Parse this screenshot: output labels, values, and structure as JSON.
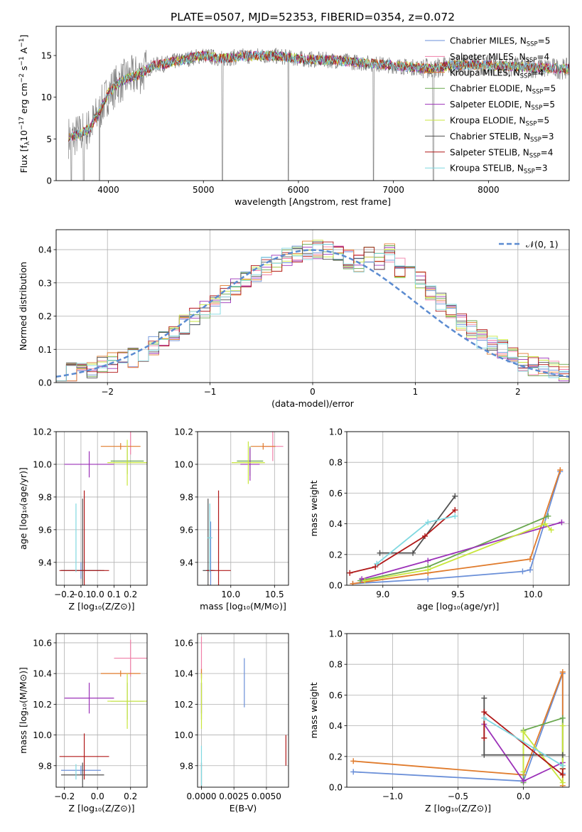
{
  "figure_title": "PLATE=0507, MJD=52353, FIBERID=0354, z=0.072",
  "chart_data": [
    {
      "id": "spectrum",
      "type": "line",
      "title": "PLATE=0507, MJD=52353, FIBERID=0354, z=0.072",
      "xlabel": "wavelength [Angstrom, rest frame]",
      "ylabel": "Flux [f_λ 10^-17 erg cm^-2 s^-1 A^-1]",
      "xlim": [
        3450,
        8850
      ],
      "ylim": [
        0,
        18.5
      ],
      "xticks": [
        4000,
        5000,
        6000,
        7000,
        8000
      ],
      "yticks": [
        0,
        5,
        10,
        15
      ],
      "grid": false,
      "legend": "upper right",
      "data_color": "#808080",
      "continuum": {
        "x": [
          3600,
          3700,
          3800,
          3900,
          4000,
          4100,
          4200,
          4300,
          4400,
          4500,
          4600,
          4700,
          4800,
          4900,
          5000,
          5200,
          5400,
          5600,
          5800,
          6000,
          6200,
          6400,
          6600,
          6800,
          7000,
          7200,
          7400,
          7600,
          7800,
          8000,
          8200,
          8400,
          8600,
          8800
        ],
        "y": [
          5.2,
          5.6,
          6.2,
          8.2,
          10.5,
          11.6,
          12.3,
          12.6,
          13.3,
          13.9,
          14.0,
          14.3,
          14.5,
          14.8,
          15.0,
          14.6,
          14.9,
          15.0,
          14.9,
          14.6,
          14.5,
          14.4,
          14.2,
          14.0,
          13.8,
          13.6,
          13.4,
          13.8,
          13.9,
          13.8,
          13.7,
          13.6,
          13.5,
          13.4
        ]
      },
      "absorption_features": [
        3610,
        3740,
        3905,
        5200,
        5895,
        6790,
        7420
      ],
      "series": [
        {
          "name": "Chabrier MILES, N_SSP=5",
          "label_main": "Chabrier MILES, N",
          "label_sub": "SSP",
          "label_end": "=5",
          "color": "#6a8fd8"
        },
        {
          "name": "Salpeter MILES, N_SSP=4",
          "label_main": "Salpeter MILES, N",
          "label_sub": "SSP",
          "label_end": "=4",
          "color": "#f07fa8"
        },
        {
          "name": "Kroupa MILES, N_SSP=4",
          "label_main": "Kroupa MILES, N",
          "label_sub": "SSP",
          "label_end": "=4",
          "color": "#e07b2c"
        },
        {
          "name": "Chabrier ELODIE, N_SSP=5",
          "label_main": "Chabrier ELODIE, N",
          "label_sub": "SSP",
          "label_end": "=5",
          "color": "#6aa84f"
        },
        {
          "name": "Salpeter ELODIE, N_SSP=5",
          "label_main": "Salpeter ELODIE, N",
          "label_sub": "SSP",
          "label_end": "=5",
          "color": "#9b30b8"
        },
        {
          "name": "Kroupa ELODIE, N_SSP=5",
          "label_main": "Kroupa ELODIE, N",
          "label_sub": "SSP",
          "label_end": "=5",
          "color": "#c8e63c"
        },
        {
          "name": "Chabrier STELIB, N_SSP=3",
          "label_main": "Chabrier STELIB, N",
          "label_sub": "SSP",
          "label_end": "=3",
          "color": "#505050"
        },
        {
          "name": "Salpeter STELIB, N_SSP=4",
          "label_main": "Salpeter STELIB, N",
          "label_sub": "SSP",
          "label_end": "=4",
          "color": "#b01818"
        },
        {
          "name": "Kroupa STELIB, N_SSP=3",
          "label_main": "Kroupa STELIB, N",
          "label_sub": "SSP",
          "label_end": "=3",
          "color": "#7fd8e0"
        }
      ]
    },
    {
      "id": "residuals",
      "type": "histogram",
      "xlabel": "(data-model)/error",
      "ylabel": "Normed distribution",
      "xlim": [
        -2.5,
        2.5
      ],
      "ylim": [
        0,
        0.46
      ],
      "xticks": [
        -2,
        -1,
        0,
        1,
        2
      ],
      "xtick_labels": [
        "−2",
        "−1",
        "0",
        "1",
        "2"
      ],
      "yticks": [
        0.0,
        0.1,
        0.2,
        0.3,
        0.4
      ],
      "ytick_labels": [
        "0.0",
        "0.1",
        "0.2",
        "0.3",
        "0.4"
      ],
      "grid": true,
      "legend": "upper right",
      "bin_width": 0.1,
      "bin_start": -2.5,
      "normal_curve": {
        "label": "𝒩(0, 1)",
        "color": "#5b8bd0",
        "style": "dashed"
      },
      "bin_values": [
        0.02,
        0.03,
        0.04,
        0.04,
        0.05,
        0.06,
        0.065,
        0.075,
        0.09,
        0.11,
        0.13,
        0.15,
        0.175,
        0.2,
        0.215,
        0.235,
        0.265,
        0.29,
        0.31,
        0.33,
        0.35,
        0.36,
        0.375,
        0.39,
        0.4,
        0.4,
        0.395,
        0.385,
        0.37,
        0.36,
        0.38,
        0.37,
        0.39,
        0.345,
        0.325,
        0.305,
        0.27,
        0.24,
        0.21,
        0.185,
        0.16,
        0.13,
        0.115,
        0.1,
        0.08,
        0.06,
        0.05,
        0.045,
        0.04,
        0.03
      ],
      "series_colors": [
        "#6a8fd8",
        "#f07fa8",
        "#e07b2c",
        "#6aa84f",
        "#9b30b8",
        "#c8e63c",
        "#505050",
        "#b01818",
        "#7fd8e0"
      ]
    },
    {
      "id": "age-vs-Z",
      "type": "errorbar",
      "xlabel": "Z [log₁₀(Z/Z⊙)]",
      "ylabel": "age  [log₁₀(age/yr)]",
      "xlim": [
        -0.25,
        0.3
      ],
      "ylim": [
        9.26,
        10.2
      ],
      "xticks": [
        -0.2,
        -0.1,
        0.0,
        0.1,
        0.2
      ],
      "xtick_labels": [
        "−0.2",
        "−0.1",
        "0.0",
        "0.1",
        "0.2"
      ],
      "yticks": [
        9.4,
        9.6,
        9.8,
        10.0,
        10.2
      ],
      "ytick_labels": [
        "9.4",
        "9.6",
        "9.8",
        "10.0",
        "10.2"
      ],
      "grid": true,
      "points": [
        {
          "series": 0,
          "x": -0.1,
          "xerr": 0.12,
          "y": 9.35,
          "yerr": 0.05
        },
        {
          "series": 1,
          "x": 0.2,
          "xerr": 0.0,
          "y": 10.13,
          "yerr": 0.07
        },
        {
          "series": 2,
          "x": 0.14,
          "xerr": 0.12,
          "y": 10.11,
          "yerr": 0.02
        },
        {
          "series": 3,
          "x": 0.18,
          "xerr": 0.1,
          "y": 10.02,
          "yerr": 0.08
        },
        {
          "series": 4,
          "x": -0.05,
          "xerr": 0.15,
          "y": 10.0,
          "yerr": 0.08
        },
        {
          "series": 5,
          "x": 0.18,
          "xerr": 0.12,
          "y": 10.01,
          "yerr": 0.14
        },
        {
          "series": 6,
          "x": -0.09,
          "xerr": 0.13,
          "y": 9.35,
          "yerr": 0.44
        },
        {
          "series": 7,
          "x": -0.08,
          "xerr": 0.15,
          "y": 9.35,
          "yerr": 0.49
        },
        {
          "series": 8,
          "x": -0.13,
          "xerr": 0.0,
          "y": 9.55,
          "yerr": 0.21
        }
      ]
    },
    {
      "id": "age-vs-mass",
      "type": "errorbar",
      "xlabel": "mass [log₁₀(M/M⊙)]",
      "ylabel": "",
      "xlim": [
        9.62,
        10.66
      ],
      "ylim": [
        9.26,
        10.2
      ],
      "xticks": [
        10.0,
        10.5
      ],
      "xtick_labels": [
        "10.0",
        "10.5"
      ],
      "yticks": [
        9.4,
        9.6,
        9.8,
        10.0,
        10.2
      ],
      "ytick_labels": [
        "9.4",
        "9.6",
        "9.8",
        "10.0",
        "10.2"
      ],
      "grid": true,
      "points": [
        {
          "series": 0,
          "x": 9.77,
          "xerr": 0.05,
          "y": 9.35,
          "yerr": 0.3
        },
        {
          "series": 1,
          "x": 10.48,
          "xerr": 0.12,
          "y": 10.11,
          "yerr": 0.09
        },
        {
          "series": 2,
          "x": 10.37,
          "xerr": 0.14,
          "y": 10.11,
          "yerr": 0.02
        },
        {
          "series": 3,
          "x": 10.22,
          "xerr": 0.15,
          "y": 10.02,
          "yerr": 0.09
        },
        {
          "series": 4,
          "x": 10.22,
          "xerr": 0.11,
          "y": 10.0,
          "yerr": 0.1
        },
        {
          "series": 5,
          "x": 10.2,
          "xerr": 0.19,
          "y": 10.01,
          "yerr": 0.13
        },
        {
          "series": 6,
          "x": 9.74,
          "xerr": 0.06,
          "y": 9.35,
          "yerr": 0.44
        },
        {
          "series": 7,
          "x": 9.86,
          "xerr": 0.14,
          "y": 9.35,
          "yerr": 0.49
        },
        {
          "series": 8,
          "x": 9.76,
          "xerr": 0.03,
          "y": 9.55,
          "yerr": 0.21
        }
      ]
    },
    {
      "id": "weight-vs-age",
      "type": "line",
      "xlabel": "age  [log₁₀(age/yr)]",
      "ylabel": "mass weight",
      "xlim": [
        8.76,
        10.24
      ],
      "ylim": [
        0,
        1.0
      ],
      "xticks": [
        9.0,
        9.5,
        10.0
      ],
      "xtick_labels": [
        "9.0",
        "9.5",
        "10.0"
      ],
      "yticks": [
        0.0,
        0.2,
        0.4,
        0.6,
        0.8,
        1.0
      ],
      "ytick_labels": [
        "0.0",
        "0.2",
        "0.4",
        "0.6",
        "0.8",
        "1.0"
      ],
      "grid": true,
      "lines": [
        {
          "series": 0,
          "x": [
            8.8,
            9.3,
            9.93,
            9.98,
            10.18
          ],
          "y": [
            0.01,
            0.04,
            0.09,
            0.1,
            0.74
          ]
        },
        {
          "series": 2,
          "x": [
            8.8,
            9.3,
            9.98,
            10.18
          ],
          "y": [
            0.01,
            0.08,
            0.17,
            0.75
          ]
        },
        {
          "series": 3,
          "x": [
            8.85,
            9.3,
            10.1
          ],
          "y": [
            0.03,
            0.12,
            0.45
          ]
        },
        {
          "series": 4,
          "x": [
            8.86,
            9.3,
            10.19
          ],
          "y": [
            0.04,
            0.16,
            0.41
          ]
        },
        {
          "series": 5,
          "x": [
            8.88,
            9.3,
            10.08,
            10.12
          ],
          "y": [
            0.03,
            0.1,
            0.4,
            0.36
          ]
        },
        {
          "series": 6,
          "x": [
            8.98,
            9.2,
            9.48
          ],
          "y": [
            0.21,
            0.21,
            0.58
          ]
        },
        {
          "series": 7,
          "x": [
            8.78,
            8.95,
            9.28,
            9.48
          ],
          "y": [
            0.08,
            0.12,
            0.32,
            0.49
          ]
        },
        {
          "series": 8,
          "x": [
            8.96,
            9.3,
            9.48
          ],
          "y": [
            0.14,
            0.41,
            0.45
          ]
        }
      ]
    },
    {
      "id": "mass-vs-Z",
      "type": "errorbar",
      "xlabel": "Z [log₁₀(Z/Z⊙)]",
      "ylabel": "mass [log₁₀(M/M⊙)]",
      "xlim": [
        -0.25,
        0.3
      ],
      "ylim": [
        9.66,
        10.66
      ],
      "xticks": [
        -0.2,
        0.0,
        0.2
      ],
      "xtick_labels": [
        "−0.2",
        "0.0",
        "0.2"
      ],
      "yticks": [
        9.8,
        10.0,
        10.2,
        10.4,
        10.6
      ],
      "ytick_labels": [
        "9.8",
        "10.0",
        "10.2",
        "10.4",
        "10.6"
      ],
      "grid": true,
      "points": [
        {
          "series": 0,
          "x": -0.1,
          "xerr": 0.12,
          "y": 9.77,
          "yerr": 0.03
        },
        {
          "series": 1,
          "x": 0.2,
          "xerr": 0.1,
          "y": 10.5,
          "yerr": 0.12
        },
        {
          "series": 2,
          "x": 0.14,
          "xerr": 0.12,
          "y": 10.4,
          "yerr": 0.02
        },
        {
          "series": 3,
          "x": 0.18,
          "xerr": 0.1,
          "y": 10.22,
          "yerr": 0.12
        },
        {
          "series": 4,
          "x": -0.05,
          "xerr": 0.15,
          "y": 10.24,
          "yerr": 0.1
        },
        {
          "series": 5,
          "x": 0.18,
          "xerr": 0.12,
          "y": 10.22,
          "yerr": 0.18
        },
        {
          "series": 6,
          "x": -0.09,
          "xerr": 0.13,
          "y": 9.74,
          "yerr": 0.08
        },
        {
          "series": 7,
          "x": -0.08,
          "xerr": 0.15,
          "y": 9.86,
          "yerr": 0.15
        },
        {
          "series": 8,
          "x": -0.13,
          "xerr": 0.0,
          "y": 9.76,
          "yerr": 0.05
        }
      ]
    },
    {
      "id": "mass-vs-ebv",
      "type": "errorbar",
      "xlabel": "E(B-V)",
      "ylabel": "",
      "xlim": [
        -0.0003,
        0.0067
      ],
      "ylim": [
        9.66,
        10.66
      ],
      "xticks": [
        0.0,
        0.0025,
        0.005
      ],
      "xtick_labels": [
        "0.0000",
        "0.0025",
        "0.0050"
      ],
      "yticks": [
        9.8,
        10.0,
        10.2,
        10.4,
        10.6
      ],
      "ytick_labels": [
        "9.8",
        "10.0",
        "10.2",
        "10.4",
        "10.6"
      ],
      "grid": true,
      "points": [
        {
          "series": 0,
          "x": 0.0033,
          "xerr": 0.0,
          "y": 10.34,
          "yerr": 0.16
        },
        {
          "series": 1,
          "x": 0.0,
          "xerr": 0.0,
          "y": 10.5,
          "yerr": 0.14
        },
        {
          "series": 2,
          "x": 0.0,
          "xerr": 0.0,
          "y": 10.4,
          "yerr": 0.03
        },
        {
          "series": 3,
          "x": 0.0,
          "xerr": 0.0,
          "y": 10.22,
          "yerr": 0.12
        },
        {
          "series": 4,
          "x": 0.0,
          "xerr": 0.0,
          "y": 10.24,
          "yerr": 0.1
        },
        {
          "series": 5,
          "x": 0.0,
          "xerr": 0.0,
          "y": 10.22,
          "yerr": 0.18
        },
        {
          "series": 6,
          "x": 0.0,
          "xerr": 0.0,
          "y": 9.74,
          "yerr": 0.08
        },
        {
          "series": 7,
          "x": 0.0065,
          "xerr": 0.0,
          "y": 9.9,
          "yerr": 0.1
        },
        {
          "series": 8,
          "x": 0.0,
          "xerr": 0.0,
          "y": 9.8,
          "yerr": 0.13
        }
      ]
    },
    {
      "id": "weight-vs-Z",
      "type": "line",
      "xlabel": "Z [log₁₀(Z/Z⊙)]",
      "ylabel": "mass weight",
      "xlim": [
        -1.35,
        0.35
      ],
      "ylim": [
        0,
        1.0
      ],
      "xticks": [
        -1.0,
        -0.5,
        0.0
      ],
      "xtick_labels": [
        "−1.0",
        "−0.5",
        "0.0"
      ],
      "yticks": [
        0.0,
        0.2,
        0.4,
        0.6,
        0.8,
        1.0
      ],
      "ytick_labels": [
        "0.0",
        "0.2",
        "0.4",
        "0.6",
        "0.8",
        "1.0"
      ],
      "grid": true,
      "lines": [
        {
          "series": 0,
          "x": [
            -1.3,
            0.0,
            0.3,
            0.3
          ],
          "y": [
            0.1,
            0.04,
            0.74,
            0.09
          ]
        },
        {
          "series": 2,
          "x": [
            -1.3,
            0.0,
            0.3,
            0.3
          ],
          "y": [
            0.17,
            0.08,
            0.75,
            0.01
          ]
        },
        {
          "series": 3,
          "x": [
            0.0,
            0.0,
            0.3,
            0.3
          ],
          "y": [
            0.03,
            0.37,
            0.45,
            0.12
          ]
        },
        {
          "series": 4,
          "x": [
            -0.3,
            0.0,
            0.3
          ],
          "y": [
            0.41,
            0.04,
            0.16
          ]
        },
        {
          "series": 5,
          "x": [
            0.0,
            0.0,
            0.3,
            0.3
          ],
          "y": [
            0.1,
            0.36,
            0.03,
            0.4
          ]
        },
        {
          "series": 6,
          "x": [
            -0.3,
            -0.3,
            0.3
          ],
          "y": [
            0.58,
            0.21,
            0.21
          ]
        },
        {
          "series": 7,
          "x": [
            -0.3,
            -0.3,
            0.3,
            0.3
          ],
          "y": [
            0.32,
            0.49,
            0.08,
            0.12
          ]
        },
        {
          "series": 8,
          "x": [
            -0.3,
            0.3
          ],
          "y": [
            0.45,
            0.14
          ]
        }
      ]
    }
  ]
}
